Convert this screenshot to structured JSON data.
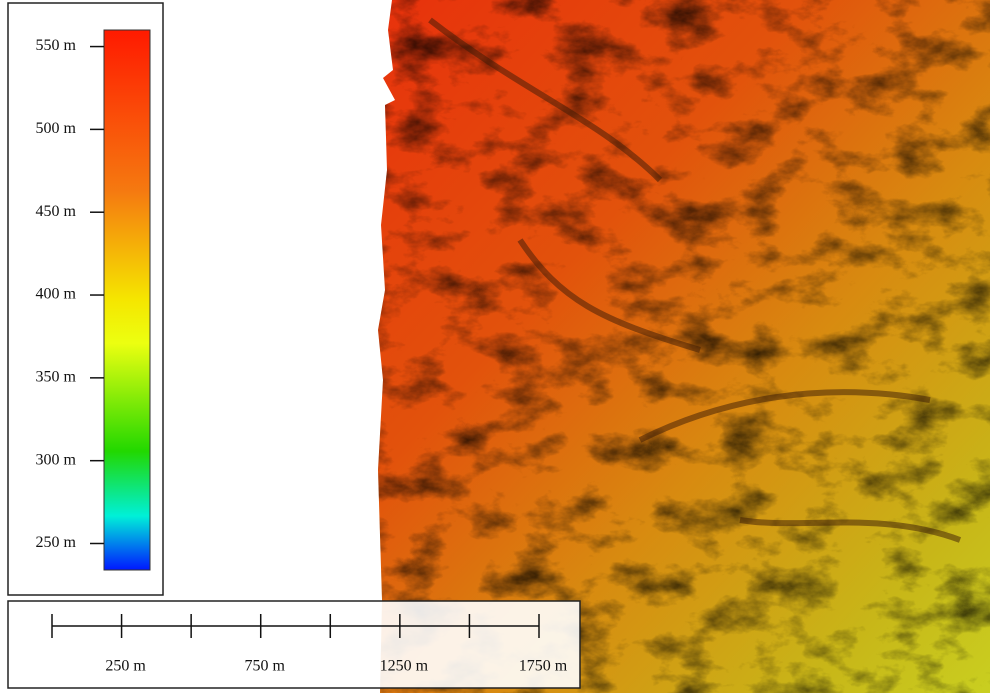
{
  "legend": {
    "range": [
      234,
      560
    ],
    "ticks": [
      {
        "value": 550,
        "label": "550 m"
      },
      {
        "value": 500,
        "label": "500 m"
      },
      {
        "value": 450,
        "label": "450 m"
      },
      {
        "value": 400,
        "label": "400 m"
      },
      {
        "value": 350,
        "label": "350 m"
      },
      {
        "value": 300,
        "label": "300 m"
      },
      {
        "value": 250,
        "label": "250 m"
      }
    ]
  },
  "scale_bar": {
    "range": [
      0,
      1750
    ],
    "ticks": [
      0,
      250,
      500,
      750,
      1000,
      1250,
      1500,
      1750
    ],
    "labels": [
      {
        "value": 250,
        "label": "250 m"
      },
      {
        "value": 750,
        "label": "750 m"
      },
      {
        "value": 1250,
        "label": "1250 m"
      },
      {
        "value": 1750,
        "label": "1750 m"
      }
    ]
  }
}
